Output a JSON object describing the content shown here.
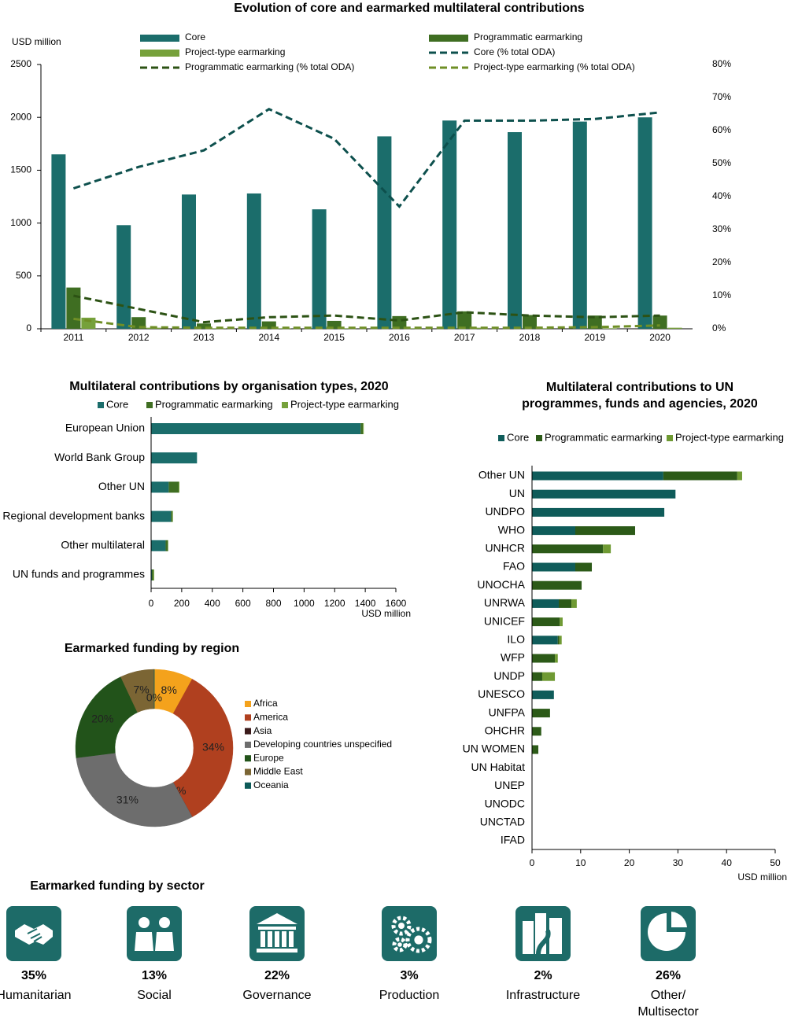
{
  "chart_data": [
    {
      "type": "combo",
      "title": "Evolution of core and earmarked multilateral contributions",
      "y_label": "USD million",
      "categories": [
        "2011",
        "2012",
        "2013",
        "2014",
        "2015",
        "2016",
        "2017",
        "2018",
        "2019",
        "2020"
      ],
      "series": [
        {
          "name": "Core",
          "type": "bar",
          "color": "#1b6d6b",
          "values": [
            1650,
            980,
            1270,
            1280,
            1130,
            1820,
            1970,
            1860,
            1960,
            2000
          ]
        },
        {
          "name": "Programmatic earmarking",
          "type": "bar",
          "color": "#3f6e22",
          "values": [
            390,
            110,
            50,
            70,
            75,
            120,
            165,
            130,
            125,
            125
          ]
        },
        {
          "name": "Project-type earmarking",
          "type": "bar",
          "color": "#76a13b",
          "values": [
            105,
            10,
            5,
            5,
            5,
            5,
            10,
            5,
            5,
            10
          ]
        },
        {
          "name": "Core (% total ODA)",
          "type": "line",
          "axis": "y2",
          "color": "#0d504d",
          "values": [
            42.5,
            49,
            54,
            66.5,
            57.5,
            37,
            63,
            63,
            63.5,
            65.5
          ]
        },
        {
          "name": "Programmatic earmarking (% total ODA)",
          "type": "line",
          "axis": "y2",
          "color": "#2c5214",
          "values": [
            10,
            6,
            2,
            3.5,
            4,
            2.5,
            5,
            4,
            3.5,
            4
          ]
        },
        {
          "name": "Project-type earmarking (% total ODA)",
          "type": "line",
          "axis": "y2",
          "color": "#6f8f26",
          "values": [
            3,
            0.5,
            0.3,
            0.3,
            0.3,
            0.3,
            0.3,
            0.3,
            0.5,
            1
          ]
        }
      ],
      "ylim": [
        0,
        2500
      ],
      "yticks": [
        0,
        500,
        1000,
        1500,
        2000,
        2500
      ],
      "y2lim": [
        0,
        80
      ],
      "y2ticks": [
        {
          "value": 0,
          "label": "0%"
        },
        {
          "value": 10,
          "label": "10%"
        },
        {
          "value": 20,
          "label": "20%"
        },
        {
          "value": 30,
          "label": "30%"
        },
        {
          "value": 40,
          "label": "40%"
        },
        {
          "value": 50,
          "label": "50%"
        },
        {
          "value": 60,
          "label": "60%"
        },
        {
          "value": 70,
          "label": "70%"
        },
        {
          "value": 80,
          "label": "80%"
        }
      ]
    },
    {
      "type": "hbar",
      "title": "Multilateral contributions by organisation types, 2020",
      "x_label": "USD million",
      "categories": [
        "European Union",
        "World Bank Group",
        "Other UN",
        "Regional development banks",
        "Other multilateral",
        "UN funds and programmes"
      ],
      "series": [
        {
          "name": "Core",
          "color": "#1b6d6b",
          "values": [
            1370,
            300,
            115,
            130,
            95,
            5
          ]
        },
        {
          "name": "Programmatic earmarking",
          "color": "#3f6e22",
          "values": [
            15,
            0,
            65,
            10,
            15,
            10
          ]
        },
        {
          "name": "Project-type earmarking",
          "color": "#76a13b",
          "values": [
            5,
            0,
            5,
            3,
            2,
            5
          ]
        }
      ],
      "xlim": [
        0,
        1600
      ],
      "xticks": [
        0,
        200,
        400,
        600,
        800,
        1000,
        1200,
        1400,
        1600
      ]
    },
    {
      "type": "hbar",
      "title": "Multilateral contributions to UN programmes, funds and agencies, 2020",
      "x_label": "USD million",
      "categories": [
        "Other UN",
        "UN",
        "UNDPO",
        "WHO",
        "UNHCR",
        "FAO",
        "UNOCHA",
        "UNRWA",
        "UNICEF",
        "ILO",
        "WFP",
        "UNDP",
        "UNESCO",
        "UNFPA",
        "OHCHR",
        "UN WOMEN",
        "UN Habitat",
        "UNEP",
        "UNODC",
        "UNCTAD",
        "IFAD"
      ],
      "series": [
        {
          "name": "Core",
          "color": "#0f5c5a",
          "values": [
            27,
            29.5,
            27.2,
            8.9,
            0,
            8.9,
            0,
            5.5,
            0,
            5.3,
            0,
            0,
            4.5,
            0,
            0,
            0,
            0,
            0,
            0,
            0,
            0
          ]
        },
        {
          "name": "Programmatic earmarking",
          "color": "#2c5a18",
          "values": [
            15.2,
            0,
            0,
            12.3,
            14.6,
            3.4,
            10.2,
            2.6,
            5.7,
            0.3,
            4.7,
            2.1,
            0,
            3.7,
            1.9,
            1.3,
            0,
            0,
            0,
            0,
            0
          ]
        },
        {
          "name": "Project-type earmarking",
          "color": "#6f9a33",
          "values": [
            1,
            0,
            0,
            0,
            1.6,
            0,
            0,
            1.1,
            0.6,
            0.5,
            0.6,
            2.6,
            0,
            0,
            0,
            0,
            0,
            0,
            0,
            0,
            0
          ]
        }
      ],
      "xlim": [
        0,
        50
      ],
      "xticks": [
        0,
        10,
        20,
        30,
        40,
        50
      ]
    },
    {
      "type": "donut",
      "title": "Earmarked funding by region",
      "categories": [
        "Africa",
        "America",
        "Asia",
        "Developing countries unspecified",
        "Europe",
        "Middle East",
        "Oceania"
      ],
      "values": [
        8,
        34,
        0,
        31,
        20,
        7,
        0
      ],
      "value_labels": [
        "8%",
        "34%",
        "0%",
        "31%",
        "20%",
        "7%",
        "0%"
      ],
      "colors": [
        "#f4a21c",
        "#b0401f",
        "#3b1b1b",
        "#6d6d6d",
        "#22531a",
        "#7b6534",
        "#0d5a58"
      ]
    },
    {
      "type": "pictogram",
      "title": "Earmarked funding by sector",
      "color": "#1d6b68",
      "categories": [
        "Humanitarian",
        "Social",
        "Governance",
        "Production",
        "Infrastructure",
        "Other/ Multisector"
      ],
      "values": [
        35,
        13,
        22,
        3,
        2,
        26
      ],
      "value_labels": [
        "35%",
        "13%",
        "22%",
        "3%",
        "2%",
        "26%"
      ]
    }
  ]
}
